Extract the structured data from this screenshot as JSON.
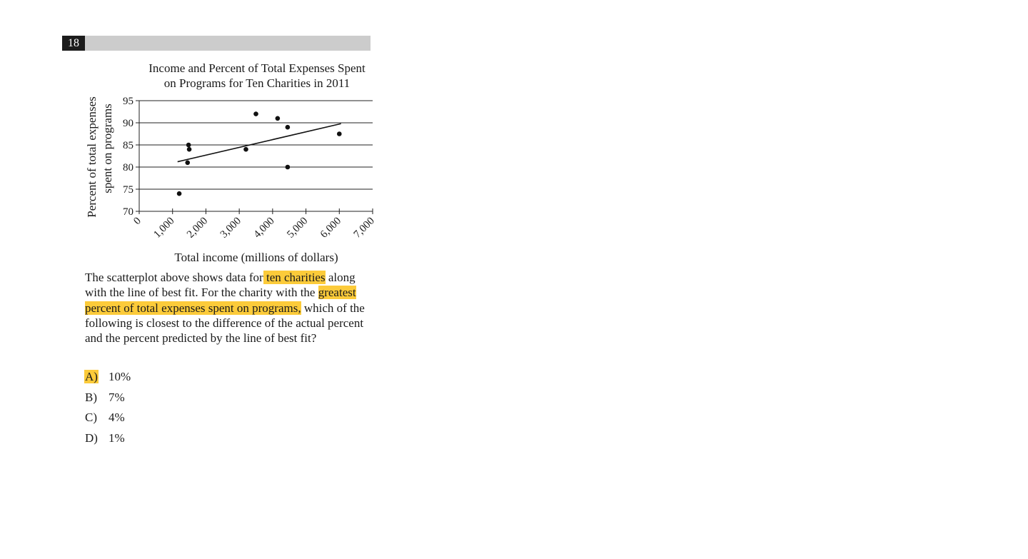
{
  "question_number": "18",
  "chart_data": {
    "type": "scatter",
    "title_lines": [
      "Income and Percent of Total Expenses Spent",
      "on Programs for Ten Charities in 2011"
    ],
    "xlabel": "Total income (millions of dollars)",
    "ylabel_lines": [
      "Percent of total expenses",
      "spent on programs"
    ],
    "xlim": [
      0,
      7000
    ],
    "ylim": [
      70,
      95
    ],
    "x_ticks": [
      0,
      1000,
      2000,
      3000,
      4000,
      5000,
      6000,
      7000
    ],
    "x_tick_labels": [
      "0",
      "1,000",
      "2,000",
      "3,000",
      "4,000",
      "5,000",
      "6,000",
      "7,000"
    ],
    "y_ticks": [
      70,
      75,
      80,
      85,
      90,
      95
    ],
    "y_tick_labels": [
      "70",
      "75",
      "80",
      "85",
      "90",
      "95"
    ],
    "grid": "horizontal",
    "points": [
      {
        "x": 1200,
        "y": 74
      },
      {
        "x": 1450,
        "y": 81
      },
      {
        "x": 1480,
        "y": 85
      },
      {
        "x": 1500,
        "y": 84
      },
      {
        "x": 3200,
        "y": 84
      },
      {
        "x": 3500,
        "y": 92
      },
      {
        "x": 4150,
        "y": 91
      },
      {
        "x": 4450,
        "y": 89
      },
      {
        "x": 4450,
        "y": 80
      },
      {
        "x": 6000,
        "y": 87.5
      }
    ],
    "best_fit_line": [
      {
        "x": 1150,
        "y": 81.2
      },
      {
        "x": 6050,
        "y": 89.8
      }
    ],
    "point_color": "#111111"
  },
  "question": {
    "before_hl1": "The scatterplot above shows data for",
    "hl1": " ten charities",
    "between": " along with the line of best fit. For the charity with the ",
    "hl2": "greatest percent of total expenses spent on programs,",
    "after": " which of the following is closest to the difference of the actual percent and the percent predicted by the line of best fit?"
  },
  "choices": [
    {
      "letter": "A)",
      "text": "10%",
      "highlighted": true
    },
    {
      "letter": "B)",
      "text": "7%",
      "highlighted": false
    },
    {
      "letter": "C)",
      "text": "4%",
      "highlighted": false
    },
    {
      "letter": "D)",
      "text": "1%",
      "highlighted": false
    }
  ],
  "highlight_color": "#fccb3a"
}
